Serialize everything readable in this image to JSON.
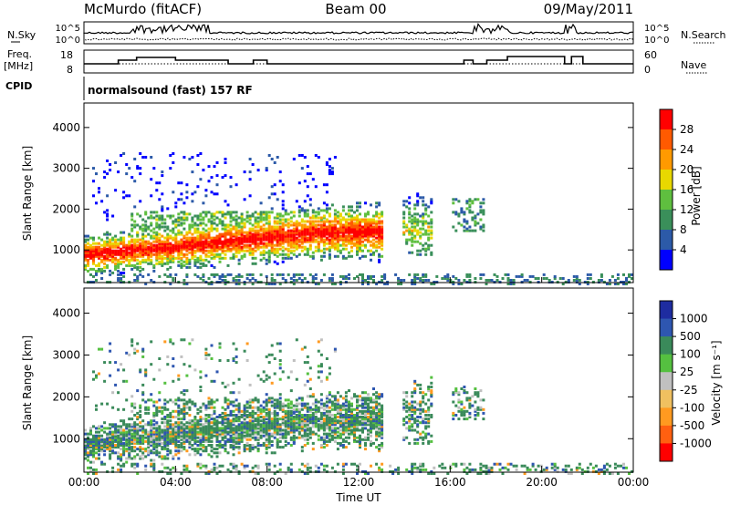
{
  "header": {
    "station": "McMurdo (fitACF)",
    "beam": "Beam 00",
    "date": "09/May/2011",
    "cpid_label": "CPID",
    "cpid_value": "normalsound (fast) 157 RF"
  },
  "chart_data": [
    {
      "type": "line",
      "name": "noise-panel",
      "left_label": "N.Sky",
      "right_label": "N.Search",
      "left_ticks": [
        "10^5",
        "10^0"
      ],
      "right_ticks": [
        "10^5",
        "10^0"
      ],
      "x_range_hours": [
        0,
        24
      ]
    },
    {
      "type": "line",
      "name": "frequency-panel",
      "left_label_line1": "Freq.",
      "left_label_line2": "[MHz]",
      "right_label": "Nave",
      "left_ticks": [
        "18",
        "8"
      ],
      "right_ticks": [
        "60",
        "0"
      ],
      "x_range_hours": [
        0,
        24
      ]
    },
    {
      "type": "heatmap",
      "name": "power-panel",
      "ylabel": "Slant Range [km]",
      "ylim": [
        200,
        4600
      ],
      "y_ticks": [
        1000,
        2000,
        3000,
        4000
      ],
      "colorbar_label": "Power [dB]",
      "colorbar_ticks": [
        "28",
        "24",
        "20",
        "16",
        "12",
        "8",
        "4"
      ],
      "colorbar_colors": [
        "#ff0000",
        "#ff5a00",
        "#ff9a00",
        "#e8d800",
        "#5fbf3f",
        "#3a8f5a",
        "#2c5aa8",
        "#0000ff"
      ]
    },
    {
      "type": "heatmap",
      "name": "velocity-panel",
      "ylabel": "Slant Range [km]",
      "ylim": [
        200,
        4600
      ],
      "y_ticks": [
        1000,
        2000,
        3000,
        4000
      ],
      "colorbar_label": "Velocity [m s⁻¹]",
      "colorbar_ticks": [
        "1000",
        "500",
        "100",
        "25",
        "-25",
        "-100",
        "-500",
        "-1000"
      ],
      "colorbar_colors": [
        "#1e2ca0",
        "#2e56b0",
        "#3a8a5a",
        "#55c040",
        "#c0c0c0",
        "#f0c060",
        "#ff9a20",
        "#ff6010",
        "#ff0000"
      ]
    }
  ],
  "x_axis": {
    "title": "Time UT",
    "ticks": [
      "00:00",
      "04:00",
      "08:00",
      "12:00",
      "16:00",
      "20:00",
      "00:00"
    ]
  }
}
